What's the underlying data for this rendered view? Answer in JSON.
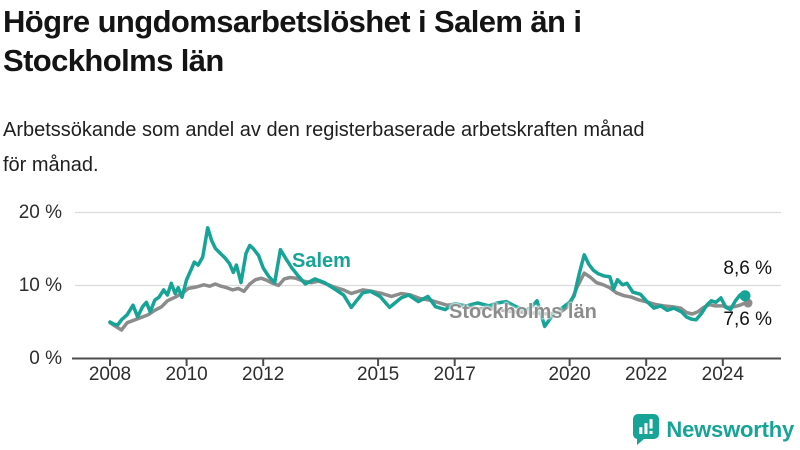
{
  "header": {
    "title_lines": [
      "Högre ungdomsarbetslöshet i Salem än i",
      "Stockholms län"
    ],
    "subtitle_lines": [
      "Arbetssökande som andel av den registerbaserade arbetskraften månad",
      "för månad."
    ]
  },
  "footer": {
    "brand": "Newsworthy",
    "logo_icon": "bar-chart-speech-bubble"
  },
  "colors": {
    "accent": "#17a396",
    "gray_series": "#8c8c8c",
    "grid": "#dcdcdc",
    "axis": "#4d4d4d",
    "tick_text": "#2e2e2e",
    "text_dark": "#141414"
  },
  "chart_data": {
    "type": "line",
    "unit": "%",
    "x_axis": {
      "ticks": [
        2008,
        2010,
        2012,
        2015,
        2017,
        2020,
        2022,
        2024
      ],
      "range": [
        2008,
        2024.7
      ]
    },
    "y_axis": {
      "ticks": [
        {
          "v": 0,
          "label": "0 %"
        },
        {
          "v": 10,
          "label": "10 %"
        },
        {
          "v": 20,
          "label": "20 %"
        }
      ],
      "range": [
        0,
        20
      ],
      "grid": true
    },
    "legend": "inline-labels",
    "series": [
      {
        "name": "Stockholms län",
        "color": "#8c8c8c",
        "end_label": "7,6 %",
        "end_value": 7.6,
        "points": [
          [
            2008.0,
            4.9
          ],
          [
            2008.15,
            4.4
          ],
          [
            2008.3,
            3.9
          ],
          [
            2008.45,
            4.9
          ],
          [
            2008.65,
            5.3
          ],
          [
            2008.85,
            5.7
          ],
          [
            2009.0,
            6.0
          ],
          [
            2009.17,
            6.6
          ],
          [
            2009.35,
            7.1
          ],
          [
            2009.5,
            7.9
          ],
          [
            2009.7,
            8.4
          ],
          [
            2009.9,
            9.0
          ],
          [
            2010.05,
            9.6
          ],
          [
            2010.25,
            9.8
          ],
          [
            2010.45,
            10.1
          ],
          [
            2010.6,
            9.9
          ],
          [
            2010.75,
            10.2
          ],
          [
            2010.9,
            9.9
          ],
          [
            2011.05,
            9.7
          ],
          [
            2011.2,
            9.4
          ],
          [
            2011.35,
            9.6
          ],
          [
            2011.5,
            9.2
          ],
          [
            2011.65,
            10.2
          ],
          [
            2011.8,
            10.8
          ],
          [
            2011.95,
            11.0
          ],
          [
            2012.1,
            10.7
          ],
          [
            2012.25,
            10.3
          ],
          [
            2012.4,
            10.0
          ],
          [
            2012.55,
            10.9
          ],
          [
            2012.7,
            11.1
          ],
          [
            2012.85,
            11.0
          ],
          [
            2013.05,
            10.6
          ],
          [
            2013.25,
            10.4
          ],
          [
            2013.45,
            10.6
          ],
          [
            2013.65,
            10.2
          ],
          [
            2013.9,
            9.7
          ],
          [
            2014.1,
            9.4
          ],
          [
            2014.3,
            8.9
          ],
          [
            2014.6,
            9.4
          ],
          [
            2014.85,
            9.2
          ],
          [
            2015.1,
            8.9
          ],
          [
            2015.35,
            8.5
          ],
          [
            2015.6,
            8.9
          ],
          [
            2015.85,
            8.7
          ],
          [
            2016.1,
            8.2
          ],
          [
            2016.35,
            8.0
          ],
          [
            2016.55,
            7.7
          ],
          [
            2016.8,
            7.3
          ],
          [
            2017.05,
            7.5
          ],
          [
            2017.35,
            7.0
          ],
          [
            2017.65,
            6.8
          ],
          [
            2017.95,
            6.9
          ],
          [
            2018.25,
            6.6
          ],
          [
            2018.55,
            6.4
          ],
          [
            2018.85,
            6.3
          ],
          [
            2019.15,
            6.2
          ],
          [
            2019.45,
            6.1
          ],
          [
            2019.75,
            6.3
          ],
          [
            2020.0,
            7.3
          ],
          [
            2020.18,
            9.6
          ],
          [
            2020.38,
            11.7
          ],
          [
            2020.55,
            11.1
          ],
          [
            2020.7,
            10.4
          ],
          [
            2020.88,
            10.1
          ],
          [
            2021.05,
            9.7
          ],
          [
            2021.22,
            9.0
          ],
          [
            2021.42,
            8.6
          ],
          [
            2021.62,
            8.4
          ],
          [
            2021.82,
            8.0
          ],
          [
            2022.05,
            7.7
          ],
          [
            2022.25,
            7.4
          ],
          [
            2022.45,
            7.2
          ],
          [
            2022.68,
            7.1
          ],
          [
            2022.9,
            6.9
          ],
          [
            2023.05,
            6.3
          ],
          [
            2023.2,
            6.1
          ],
          [
            2023.35,
            6.4
          ],
          [
            2023.5,
            7.0
          ],
          [
            2023.65,
            7.4
          ],
          [
            2023.8,
            7.2
          ],
          [
            2024.0,
            7.2
          ],
          [
            2024.15,
            7.0
          ],
          [
            2024.3,
            7.1
          ],
          [
            2024.45,
            7.3
          ],
          [
            2024.58,
            7.6
          ]
        ]
      },
      {
        "name": "Salem",
        "color": "#17a396",
        "end_label": "8,6 %",
        "end_value": 8.6,
        "points": [
          [
            2008.0,
            5.0
          ],
          [
            2008.1,
            4.7
          ],
          [
            2008.2,
            4.6
          ],
          [
            2008.3,
            5.3
          ],
          [
            2008.45,
            6.0
          ],
          [
            2008.6,
            7.3
          ],
          [
            2008.72,
            5.7
          ],
          [
            2008.85,
            7.1
          ],
          [
            2008.95,
            7.7
          ],
          [
            2009.05,
            6.4
          ],
          [
            2009.17,
            8.0
          ],
          [
            2009.28,
            8.4
          ],
          [
            2009.4,
            9.4
          ],
          [
            2009.5,
            8.7
          ],
          [
            2009.6,
            10.3
          ],
          [
            2009.7,
            8.9
          ],
          [
            2009.78,
            9.7
          ],
          [
            2009.88,
            8.4
          ],
          [
            2010.0,
            10.8
          ],
          [
            2010.12,
            12.2
          ],
          [
            2010.2,
            13.2
          ],
          [
            2010.3,
            12.8
          ],
          [
            2010.42,
            13.9
          ],
          [
            2010.55,
            17.9
          ],
          [
            2010.65,
            16.2
          ],
          [
            2010.75,
            15.1
          ],
          [
            2010.88,
            14.4
          ],
          [
            2011.0,
            13.8
          ],
          [
            2011.12,
            13.0
          ],
          [
            2011.22,
            11.8
          ],
          [
            2011.3,
            12.8
          ],
          [
            2011.42,
            10.4
          ],
          [
            2011.55,
            14.4
          ],
          [
            2011.65,
            15.5
          ],
          [
            2011.75,
            15.0
          ],
          [
            2011.88,
            14.1
          ],
          [
            2012.0,
            12.4
          ],
          [
            2012.15,
            11.2
          ],
          [
            2012.3,
            10.4
          ],
          [
            2012.45,
            14.9
          ],
          [
            2012.6,
            13.6
          ],
          [
            2012.75,
            12.4
          ],
          [
            2012.9,
            11.4
          ],
          [
            2013.1,
            10.2
          ],
          [
            2013.35,
            10.9
          ],
          [
            2013.6,
            10.4
          ],
          [
            2013.9,
            9.4
          ],
          [
            2014.1,
            8.7
          ],
          [
            2014.3,
            7.0
          ],
          [
            2014.6,
            9.0
          ],
          [
            2014.8,
            9.2
          ],
          [
            2015.05,
            8.5
          ],
          [
            2015.3,
            7.0
          ],
          [
            2015.6,
            8.3
          ],
          [
            2015.8,
            8.7
          ],
          [
            2016.05,
            7.8
          ],
          [
            2016.3,
            8.5
          ],
          [
            2016.5,
            7.1
          ],
          [
            2016.75,
            6.7
          ],
          [
            2017.0,
            7.5
          ],
          [
            2017.3,
            7.2
          ],
          [
            2017.6,
            7.6
          ],
          [
            2017.9,
            7.2
          ],
          [
            2018.1,
            7.6
          ],
          [
            2018.35,
            7.8
          ],
          [
            2018.6,
            7.1
          ],
          [
            2018.85,
            6.6
          ],
          [
            2019.0,
            7.0
          ],
          [
            2019.15,
            7.9
          ],
          [
            2019.35,
            4.4
          ],
          [
            2019.55,
            5.9
          ],
          [
            2019.8,
            6.9
          ],
          [
            2020.0,
            7.7
          ],
          [
            2020.12,
            8.6
          ],
          [
            2020.25,
            11.6
          ],
          [
            2020.38,
            14.2
          ],
          [
            2020.5,
            12.9
          ],
          [
            2020.62,
            12.1
          ],
          [
            2020.75,
            11.6
          ],
          [
            2020.9,
            11.3
          ],
          [
            2021.05,
            11.2
          ],
          [
            2021.15,
            9.5
          ],
          [
            2021.25,
            10.8
          ],
          [
            2021.38,
            10.1
          ],
          [
            2021.5,
            10.3
          ],
          [
            2021.65,
            9.1
          ],
          [
            2021.85,
            8.8
          ],
          [
            2022.0,
            7.9
          ],
          [
            2022.2,
            6.9
          ],
          [
            2022.38,
            7.2
          ],
          [
            2022.55,
            6.6
          ],
          [
            2022.72,
            6.9
          ],
          [
            2022.92,
            6.4
          ],
          [
            2023.05,
            5.7
          ],
          [
            2023.18,
            5.4
          ],
          [
            2023.3,
            5.3
          ],
          [
            2023.45,
            6.2
          ],
          [
            2023.58,
            7.3
          ],
          [
            2023.7,
            7.9
          ],
          [
            2023.82,
            7.7
          ],
          [
            2023.95,
            8.3
          ],
          [
            2024.08,
            7.0
          ],
          [
            2024.2,
            6.7
          ],
          [
            2024.33,
            7.9
          ],
          [
            2024.45,
            8.7
          ],
          [
            2024.58,
            8.6
          ]
        ]
      }
    ]
  }
}
